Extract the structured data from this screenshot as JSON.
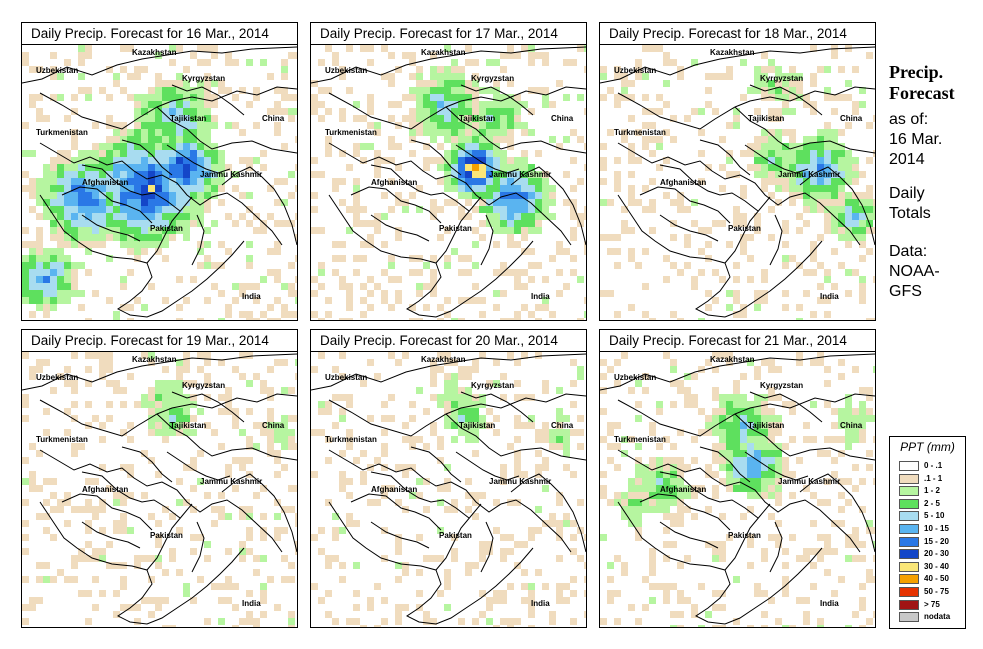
{
  "panels": [
    {
      "title": "Daily Precip. Forecast for  16 Mar., 2014",
      "intensity": "high"
    },
    {
      "title": "Daily Precip. Forecast for  17 Mar., 2014",
      "intensity": "high-east"
    },
    {
      "title": "Daily Precip. Forecast for  18 Mar., 2014",
      "intensity": "medium-east"
    },
    {
      "title": "Daily Precip. Forecast for  19 Mar., 2014",
      "intensity": "low"
    },
    {
      "title": "Daily Precip. Forecast for  20 Mar., 2014",
      "intensity": "low"
    },
    {
      "title": "Daily Precip. Forecast for  21 Mar., 2014",
      "intensity": "medium"
    }
  ],
  "map_labels": {
    "kazakhstan": "Kazakhstan",
    "uzbekistan": "Uzbekistan",
    "kyrgyzstan": "Kyrgyzstan",
    "tajikistan": "Tajikistan",
    "turkmenistan": "Turkmenistan",
    "china": "China",
    "afghanistan": "Afghanistan",
    "jammu_kashmir": "Jammu Kashmir",
    "pakistan": "Pakistan",
    "india": "India"
  },
  "side": {
    "title_line1": "Precip.",
    "title_line2": "Forecast",
    "asof_line1": "as of:",
    "asof_line2": "16 Mar.",
    "asof_line3": "2014",
    "totals_line1": "Daily",
    "totals_line2": "Totals",
    "data_line1": "Data:",
    "data_line2": "NOAA-",
    "data_line3": "GFS"
  },
  "legend": {
    "title": "PPT (mm)",
    "items": [
      {
        "label": "0 - .1",
        "color": "#ffffff"
      },
      {
        "label": ".1 - 1",
        "color": "#f0dcbe"
      },
      {
        "label": "1 - 2",
        "color": "#b6f5a0"
      },
      {
        "label": "2 - 5",
        "color": "#5ee05e"
      },
      {
        "label": "5 - 10",
        "color": "#a8dcf0"
      },
      {
        "label": "10 - 15",
        "color": "#5ab4f0"
      },
      {
        "label": "15 - 20",
        "color": "#2a78e6"
      },
      {
        "label": "20 - 30",
        "color": "#1446c8"
      },
      {
        "label": "30 - 40",
        "color": "#fae678"
      },
      {
        "label": "40 - 50",
        "color": "#f5a000"
      },
      {
        "label": "50 - 75",
        "color": "#e63200"
      },
      {
        "label": "> 75",
        "color": "#a01414"
      },
      {
        "label": "nodata",
        "color": "#c8c8c8"
      }
    ]
  }
}
